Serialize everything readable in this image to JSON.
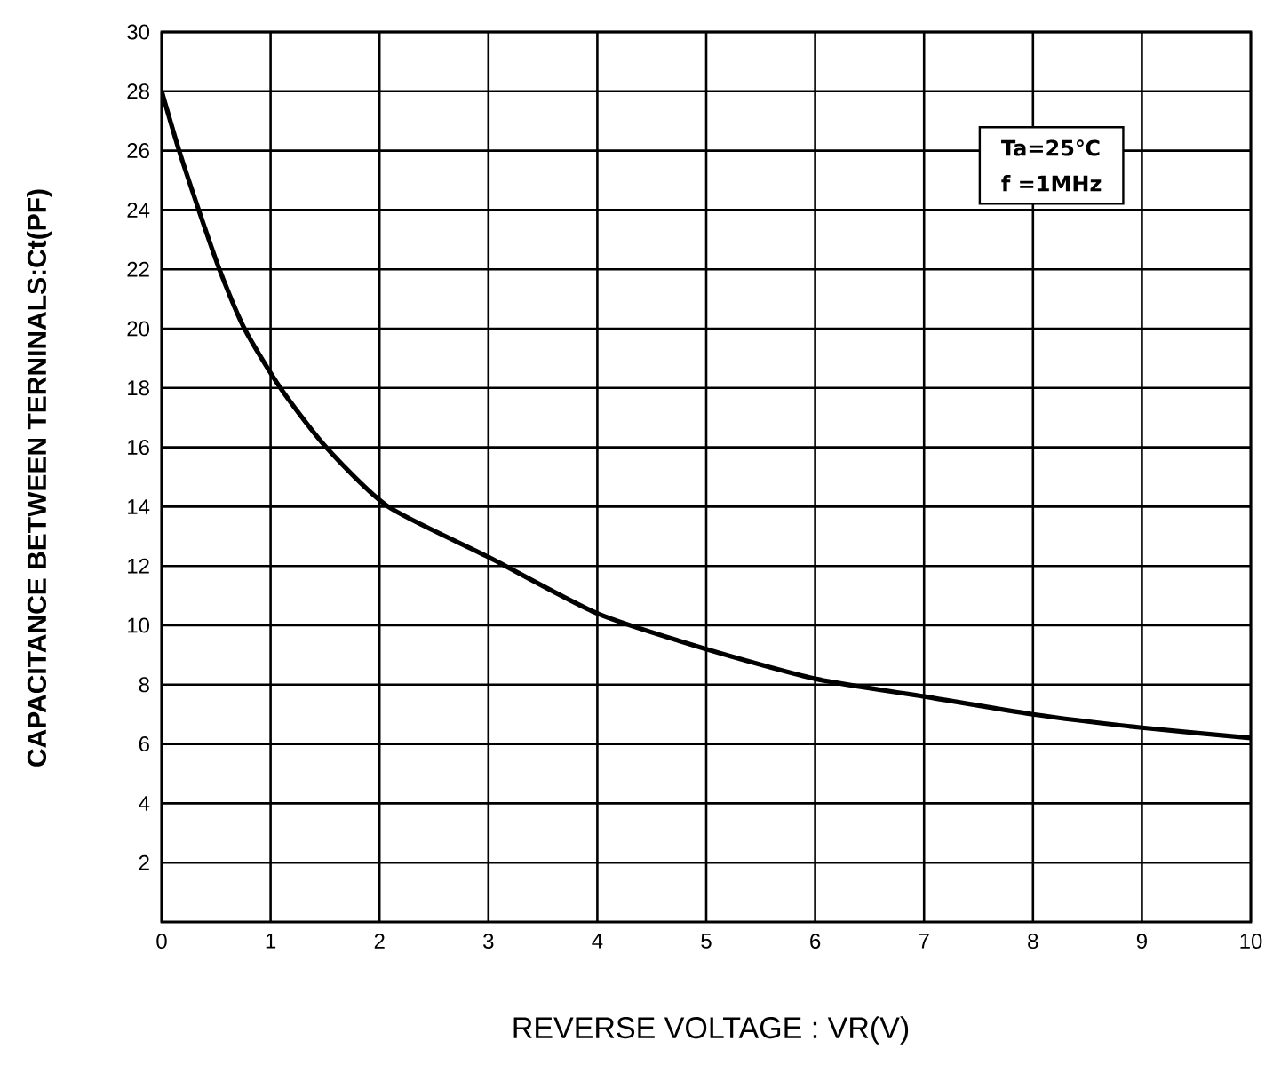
{
  "chart_data": {
    "type": "line",
    "xlabel": "REVERSE VOLTAGE : VR(V)",
    "ylabel": "CAPACITANCE BETWEEN TERNINALS:Ct(PF)",
    "annotations": [
      "Ta=25℃",
      "f =1MHz"
    ],
    "x": [
      0,
      0.16,
      0.34,
      0.53,
      0.76,
      1.09,
      1.51,
      2.08,
      3,
      4,
      5,
      6,
      7,
      8,
      9,
      10
    ],
    "series": [
      {
        "color": "#000000",
        "values": [
          28,
          26,
          24,
          22,
          20,
          18,
          16,
          14,
          12.3,
          10.4,
          9.2,
          8.2,
          7.6,
          7.0,
          6.55,
          6.2
        ]
      }
    ],
    "xlim": [
      0,
      10
    ],
    "ylim": [
      0,
      30
    ],
    "xticks": [
      0,
      1,
      2,
      3,
      4,
      5,
      6,
      7,
      8,
      9,
      10
    ],
    "yticks": [
      2,
      4,
      6,
      8,
      10,
      12,
      14,
      16,
      18,
      20,
      22,
      24,
      26,
      28,
      30
    ],
    "grid": true,
    "marker": "none",
    "line_style": "solid"
  }
}
